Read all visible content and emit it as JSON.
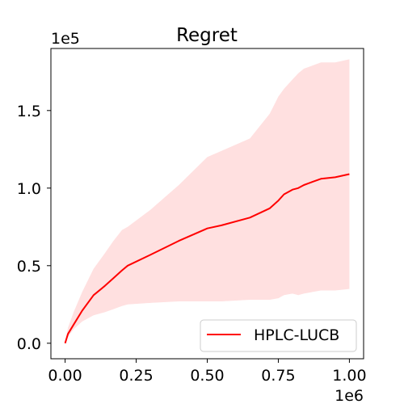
{
  "chart_data": {
    "type": "line",
    "title": "Regret",
    "xlabel": "",
    "ylabel": "",
    "x_offset_label": "1e6",
    "y_offset_label": "1e5",
    "xlim": [
      -0.05,
      1.05
    ],
    "ylim": [
      -0.1,
      1.9
    ],
    "x_ticks": [
      0.0,
      0.25,
      0.5,
      0.75,
      1.0
    ],
    "x_tick_labels": [
      "0.00",
      "0.25",
      "0.50",
      "0.75",
      "1.00"
    ],
    "y_ticks": [
      0.0,
      0.5,
      1.0,
      1.5
    ],
    "y_tick_labels": [
      "0.0",
      "0.5",
      "1.0",
      "1.5"
    ],
    "grid": false,
    "legend_position": "lower right",
    "series": [
      {
        "name": "HPLC-LUCB",
        "color": "#ff0000",
        "band_color": "#ffe0e0",
        "x": [
          0.0,
          0.01,
          0.03,
          0.06,
          0.1,
          0.14,
          0.17,
          0.2,
          0.22,
          0.3,
          0.4,
          0.5,
          0.55,
          0.65,
          0.72,
          0.75,
          0.77,
          0.8,
          0.82,
          0.84,
          0.87,
          0.9,
          0.95,
          1.0
        ],
        "y": [
          0.0,
          0.06,
          0.12,
          0.21,
          0.31,
          0.37,
          0.42,
          0.47,
          0.5,
          0.57,
          0.66,
          0.74,
          0.76,
          0.81,
          0.87,
          0.92,
          0.96,
          0.99,
          1.0,
          1.02,
          1.04,
          1.06,
          1.07,
          1.09
        ],
        "lower": [
          0.0,
          0.04,
          0.09,
          0.14,
          0.18,
          0.2,
          0.22,
          0.24,
          0.25,
          0.26,
          0.27,
          0.27,
          0.27,
          0.28,
          0.28,
          0.29,
          0.31,
          0.32,
          0.31,
          0.32,
          0.33,
          0.34,
          0.34,
          0.35
        ],
        "upper": [
          0.0,
          0.1,
          0.2,
          0.33,
          0.48,
          0.58,
          0.66,
          0.73,
          0.75,
          0.86,
          1.02,
          1.2,
          1.24,
          1.32,
          1.48,
          1.59,
          1.64,
          1.7,
          1.74,
          1.77,
          1.79,
          1.81,
          1.81,
          1.83
        ]
      }
    ]
  }
}
